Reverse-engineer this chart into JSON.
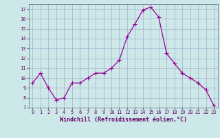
{
  "x": [
    0,
    1,
    2,
    3,
    4,
    5,
    6,
    7,
    8,
    9,
    10,
    11,
    12,
    13,
    14,
    15,
    16,
    17,
    18,
    19,
    20,
    21,
    22,
    23
  ],
  "y": [
    9.5,
    10.5,
    9.0,
    7.8,
    8.0,
    9.5,
    9.5,
    10.0,
    10.5,
    10.5,
    11.0,
    11.8,
    14.2,
    15.5,
    16.9,
    17.2,
    16.2,
    12.5,
    11.5,
    10.5,
    10.0,
    9.5,
    8.8,
    7.2
  ],
  "line_color": "#990099",
  "marker": "+",
  "marker_size": 5,
  "bg_color": "#cce8e8",
  "grid_color": "#aaaacc",
  "xlabel": "Windchill (Refroidissement éolien,°C)",
  "xlabel_color": "#660066",
  "tick_color": "#660066",
  "xlim": [
    -0.5,
    23.5
  ],
  "ylim": [
    7,
    17.5
  ],
  "yticks": [
    7,
    8,
    9,
    10,
    11,
    12,
    13,
    14,
    15,
    16,
    17
  ],
  "xticks": [
    0,
    1,
    2,
    3,
    4,
    5,
    6,
    7,
    8,
    9,
    10,
    11,
    12,
    13,
    14,
    15,
    16,
    17,
    18,
    19,
    20,
    21,
    22,
    23
  ],
  "tick_fontsize": 5.0,
  "xlabel_fontsize": 6.0
}
